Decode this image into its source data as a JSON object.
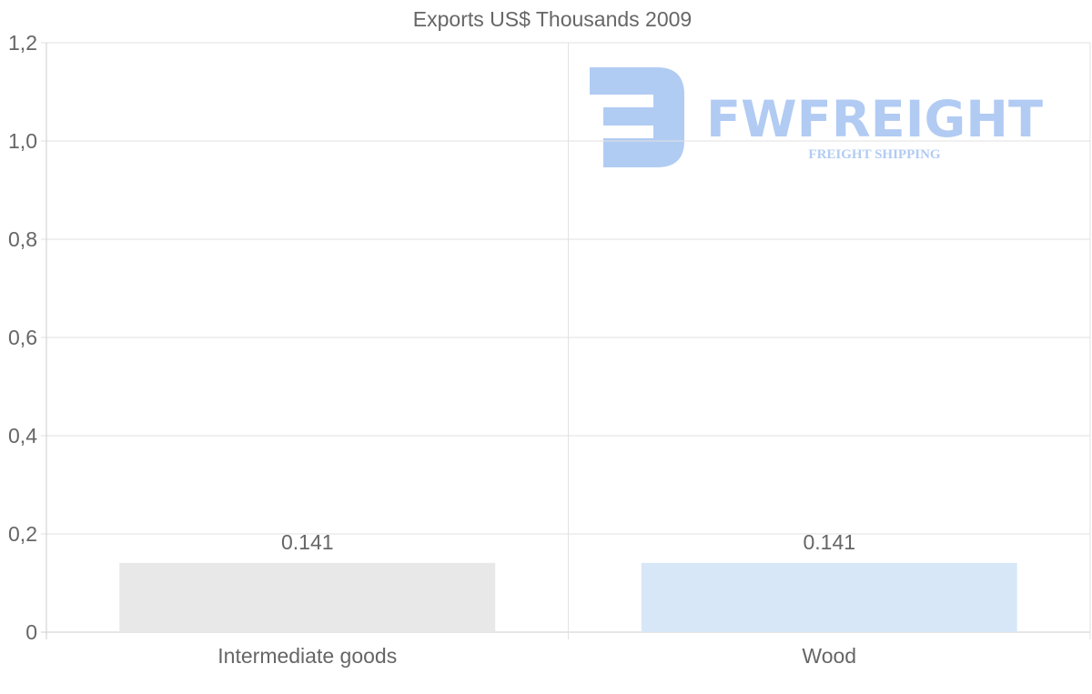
{
  "chart_data": {
    "type": "bar",
    "title": "Exports US$ Thousands 2009",
    "categories": [
      "Intermediate goods",
      "Wood"
    ],
    "values": [
      0.141,
      0.141
    ],
    "data_labels": [
      "0.141",
      "0.141"
    ],
    "bar_colors": [
      "#e8e8e8",
      "#d8e7f8"
    ],
    "ylim": [
      0,
      1.2
    ],
    "yticks": [
      0,
      0.2,
      0.4,
      0.6,
      0.8,
      1.0,
      1.2
    ],
    "ytick_labels": [
      "0",
      "0,2",
      "0,4",
      "0,6",
      "0,8",
      "1,0",
      "1,2"
    ],
    "xlabel": "",
    "ylabel": "",
    "grid": true,
    "legend": "none"
  },
  "watermark": {
    "brand": "FWFREIGHT",
    "tagline": "FREIGHT SHIPPING",
    "color": "#a9c6f2"
  }
}
